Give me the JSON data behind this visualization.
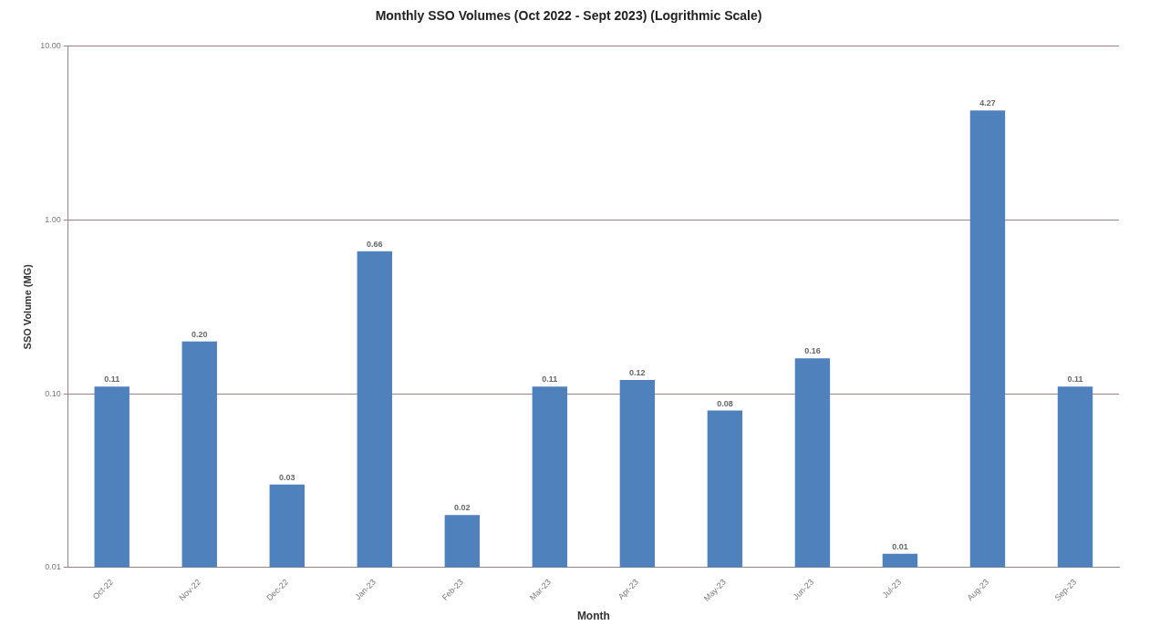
{
  "chart_data": {
    "type": "bar",
    "title": "Monthly SSO Volumes (Oct 2022 - Sept 2023) (Logrithmic Scale)",
    "xlabel": "Month",
    "ylabel": "SSO Volume (MG)",
    "categories": [
      "Oct-22",
      "Nov-22",
      "Dec-22",
      "Jan-23",
      "Feb-23",
      "Mar-23",
      "Apr-23",
      "May-23",
      "Jun-23",
      "Jul-23",
      "Aug-23",
      "Sep-23"
    ],
    "values": [
      0.11,
      0.2,
      0.03,
      0.66,
      0.02,
      0.11,
      0.12,
      0.08,
      0.16,
      0.012,
      4.27,
      0.11
    ],
    "value_labels": [
      "0.11",
      "0.20",
      "0.03",
      "0.66",
      "0.02",
      "0.11",
      "0.12",
      "0.08",
      "0.16",
      "0.01",
      "4.27",
      "0.11"
    ],
    "color": "#4f81bd",
    "log": "y",
    "ylim": [
      0.01,
      10
    ],
    "yticks": [
      {
        "value": 0.01,
        "label": "0.01"
      },
      {
        "value": 0.1,
        "label": "0.10"
      },
      {
        "value": 1,
        "label": "1.00"
      },
      {
        "value": 10,
        "label": "10.00"
      }
    ],
    "grid": "y",
    "legend": false
  }
}
